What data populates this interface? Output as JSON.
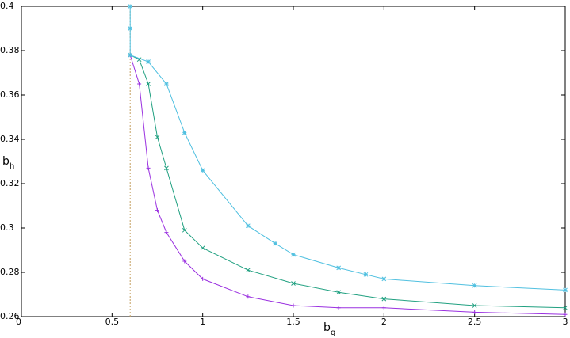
{
  "chart_data": {
    "type": "line",
    "xlabel": "b",
    "xlabel_sub": "g",
    "ylabel": "b",
    "ylabel_sub": "h",
    "xlim": [
      0,
      3
    ],
    "ylim": [
      0.26,
      0.4
    ],
    "xticks": [
      0,
      0.5,
      1,
      1.5,
      2,
      2.5,
      3
    ],
    "yticks": [
      0.26,
      0.28,
      0.3,
      0.32,
      0.34,
      0.36,
      0.38,
      0.4
    ],
    "grid": false,
    "series": [
      {
        "color": "#c4a060",
        "marker": "none",
        "dash": true,
        "x": [
          0.6,
          0.6
        ],
        "values": [
          0.26,
          0.4
        ]
      },
      {
        "color": "#9a30e0",
        "marker": "plus",
        "x": [
          0.6,
          0.65,
          0.7,
          0.75,
          0.8,
          0.9,
          1,
          1.25,
          1.5,
          1.75,
          2,
          2.5,
          3
        ],
        "values": [
          0.378,
          0.365,
          0.327,
          0.308,
          0.298,
          0.285,
          0.277,
          0.269,
          0.265,
          0.264,
          0.264,
          0.262,
          0.261
        ]
      },
      {
        "color": "#20a080",
        "marker": "cross",
        "x": [
          0.6,
          0.65,
          0.7,
          0.75,
          0.8,
          0.9,
          1,
          1.25,
          1.5,
          1.75,
          2,
          2.5,
          3
        ],
        "values": [
          0.378,
          0.376,
          0.365,
          0.341,
          0.327,
          0.299,
          0.291,
          0.281,
          0.275,
          0.271,
          0.268,
          0.265,
          0.264
        ]
      },
      {
        "color": "#50c0e0",
        "marker": "star",
        "x": [
          0.6,
          0.6,
          0.6,
          0.7,
          0.8,
          0.9,
          1,
          1.25,
          1.4,
          1.5,
          1.75,
          1.9,
          2,
          2.5,
          3
        ],
        "values": [
          0.4,
          0.39,
          0.378,
          0.375,
          0.365,
          0.343,
          0.326,
          0.301,
          0.293,
          0.288,
          0.282,
          0.279,
          0.277,
          0.274,
          0.272
        ]
      }
    ]
  }
}
